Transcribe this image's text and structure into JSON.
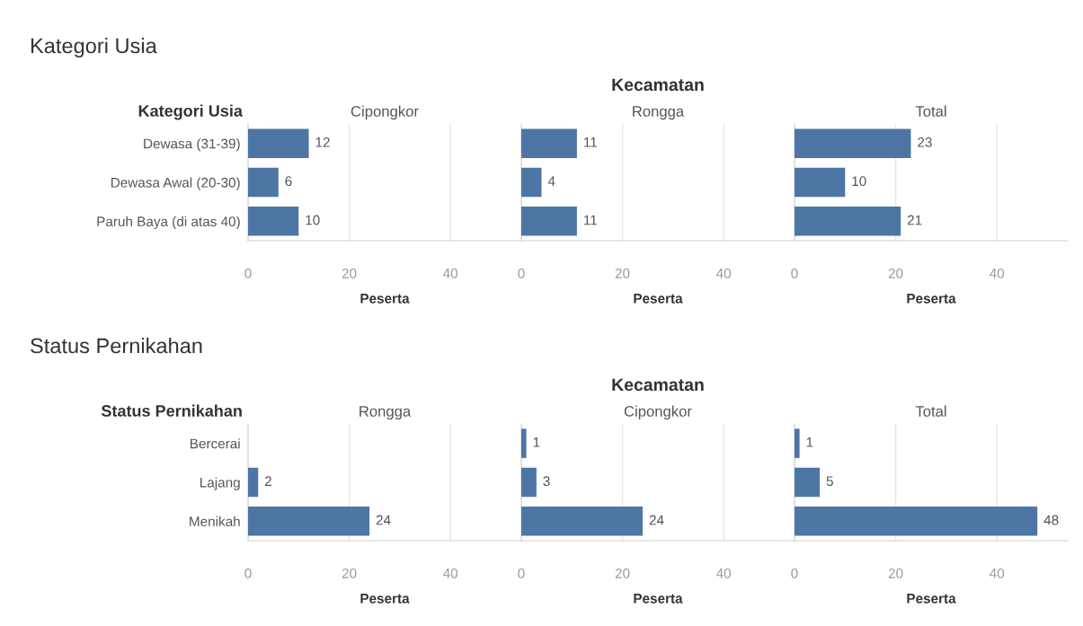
{
  "chart_data": [
    {
      "type": "bar",
      "orientation": "horizontal",
      "title": "Cipongkor",
      "ylabel": "Kategori Usia",
      "xlabel": "Peserta",
      "annotations": [
        "Kategori Usia",
        "Kecamatan"
      ],
      "categories": [
        "Dewasa (31-39)",
        "Dewasa Awal (20-30)",
        "Paruh Baya (di atas 40)"
      ],
      "values": [
        12,
        6,
        10
      ],
      "color": "#4e76a4",
      "xlim": [
        0,
        54
      ],
      "xticks": [
        0,
        20,
        40
      ],
      "grid": "x",
      "data_labels": true
    },
    {
      "type": "bar",
      "orientation": "horizontal",
      "title": "Rongga",
      "xlabel": "Peserta",
      "values": [
        11,
        4,
        11
      ],
      "color": "#4e76a4",
      "xlim": [
        0,
        54
      ],
      "xticks": [
        0,
        20,
        40
      ],
      "grid": "x",
      "data_labels": true,
      "tick_labels": "x"
    },
    {
      "type": "bar",
      "orientation": "horizontal",
      "title": "Total",
      "xlabel": "Peserta",
      "values": [
        23,
        10,
        21
      ],
      "color": "#4e76a4",
      "xlim": [
        0,
        54
      ],
      "xticks": [
        0,
        20,
        40
      ],
      "grid": "x",
      "data_labels": true,
      "tick_labels": "x"
    },
    {
      "type": "bar",
      "orientation": "horizontal",
      "title": "Rongga",
      "ylabel": "Status Pernikahan",
      "xlabel": "Peserta",
      "annotations": [
        "Status Pernikahan",
        "Kecamatan"
      ],
      "categories": [
        "Bercerai",
        "Lajang",
        "Menikah"
      ],
      "values": [
        null,
        2,
        24
      ],
      "color": "#4e76a4",
      "xlim": [
        0,
        54
      ],
      "xticks": [
        0,
        20,
        40
      ],
      "grid": "x",
      "data_labels": true
    },
    {
      "type": "bar",
      "orientation": "horizontal",
      "title": "Cipongkor",
      "xlabel": "Peserta",
      "values": [
        1,
        3,
        24
      ],
      "color": "#4e76a4",
      "xlim": [
        0,
        54
      ],
      "xticks": [
        0,
        20,
        40
      ],
      "grid": "x",
      "data_labels": true,
      "tick_labels": "x"
    },
    {
      "type": "bar",
      "orientation": "horizontal",
      "title": "Total",
      "xlabel": "Peserta",
      "values": [
        1,
        5,
        48
      ],
      "color": "#4e76a4",
      "xlim": [
        0,
        54
      ],
      "xticks": [
        0,
        20,
        40
      ],
      "grid": "x",
      "data_labels": true,
      "tick_labels": "x"
    }
  ]
}
